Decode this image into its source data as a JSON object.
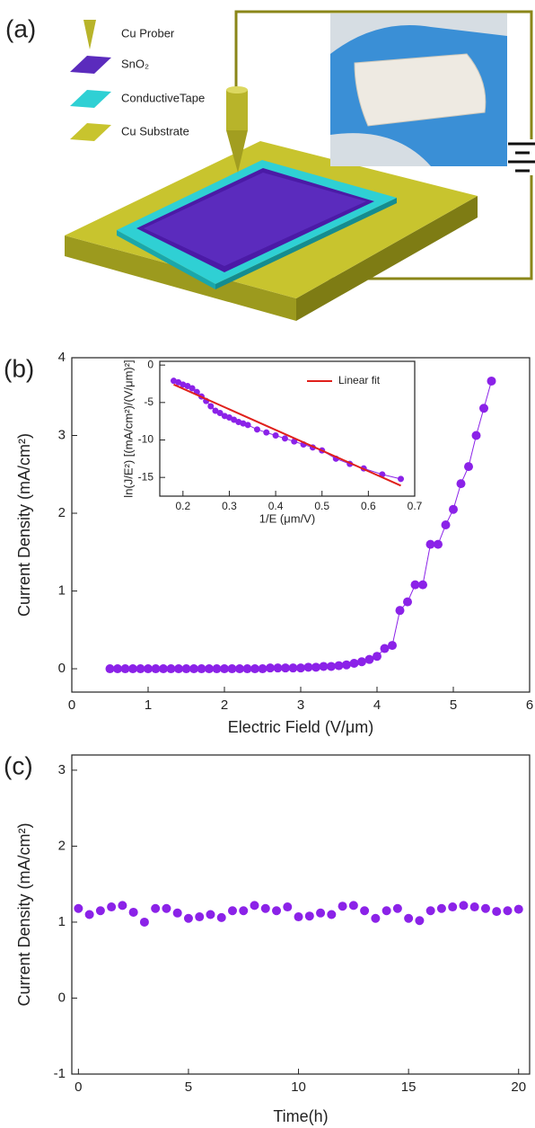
{
  "panel_a": {
    "label": "(a)",
    "legend": [
      "Cu Prober",
      "SnO₂",
      "ConductiveTape",
      "Cu Substrate"
    ]
  },
  "chart_data": [
    {
      "type": "line",
      "panel_label": "(b)",
      "x_label": "Electric Field (V/μm)",
      "y_label": "Current Density (mA/cm²)",
      "xlim": [
        0,
        6
      ],
      "xticks": [
        0,
        1,
        2,
        3,
        4,
        5,
        6
      ],
      "ylim": [
        -0.3,
        4
      ],
      "yticks": [
        0,
        1,
        2,
        3,
        4
      ],
      "series": [
        {
          "color": "#8b22e8",
          "mode": "markers+line",
          "x": [
            0.5,
            0.6,
            0.7,
            0.8,
            0.9,
            1.0,
            1.1,
            1.2,
            1.3,
            1.4,
            1.5,
            1.6,
            1.7,
            1.8,
            1.9,
            2.0,
            2.1,
            2.2,
            2.3,
            2.4,
            2.5,
            2.6,
            2.7,
            2.8,
            2.9,
            3.0,
            3.1,
            3.2,
            3.3,
            3.4,
            3.5,
            3.6,
            3.7,
            3.8,
            3.9,
            4.0,
            4.1,
            4.2,
            4.3,
            4.4,
            4.5,
            4.6,
            4.7,
            4.8,
            4.9,
            5.0,
            5.1,
            5.2,
            5.3,
            5.4,
            5.5
          ],
          "values": [
            0,
            0,
            0,
            0,
            0,
            0,
            0,
            0,
            0,
            0,
            0,
            0,
            0,
            0,
            0,
            0,
            0,
            0,
            0,
            0,
            0,
            0.01,
            0.01,
            0.01,
            0.01,
            0.01,
            0.02,
            0.02,
            0.03,
            0.03,
            0.04,
            0.05,
            0.07,
            0.09,
            0.12,
            0.16,
            0.26,
            0.3,
            0.75,
            0.86,
            1.08,
            1.08,
            1.6,
            1.6,
            1.85,
            2.05,
            2.38,
            2.6,
            3.0,
            3.35,
            3.7
          ]
        }
      ]
    },
    {
      "type": "scatter",
      "x_label": "1/E (μm/V)",
      "y_label": "ln(J/E²) [(mA/cm²)/(V/μm)²]",
      "xlim": [
        0.15,
        0.7
      ],
      "xticks": [
        0.2,
        0.3,
        0.4,
        0.5,
        0.6,
        0.7
      ],
      "ylim": [
        -17.5,
        0.5
      ],
      "yticks": [
        0,
        -5,
        -10,
        -15
      ],
      "legend": "upper right",
      "series": [
        {
          "color": "#8b22e8",
          "mode": "markers+line",
          "x": [
            0.18,
            0.19,
            0.2,
            0.21,
            0.22,
            0.23,
            0.24,
            0.25,
            0.26,
            0.27,
            0.28,
            0.29,
            0.3,
            0.31,
            0.32,
            0.33,
            0.34,
            0.36,
            0.38,
            0.4,
            0.42,
            0.44,
            0.46,
            0.48,
            0.5,
            0.53,
            0.56,
            0.59,
            0.63,
            0.67
          ],
          "values": [
            -2.1,
            -2.3,
            -2.6,
            -2.8,
            -3.1,
            -3.6,
            -4.2,
            -4.8,
            -5.5,
            -6.1,
            -6.4,
            -6.8,
            -7.0,
            -7.3,
            -7.6,
            -7.8,
            -8.0,
            -8.6,
            -9.0,
            -9.4,
            -9.8,
            -10.2,
            -10.6,
            -11.0,
            -11.4,
            -12.5,
            -13.2,
            -13.8,
            -14.6,
            -15.2
          ]
        },
        {
          "name": "Linear fit",
          "color": "#e0201b",
          "mode": "line",
          "x": [
            0.18,
            0.67
          ],
          "values": [
            -2.6,
            -16.1
          ]
        }
      ]
    },
    {
      "type": "scatter",
      "panel_label": "(c)",
      "x_label": "Time(h)",
      "y_label": "Current Density (mA/cm²)",
      "xlim": [
        -0.3,
        20.5
      ],
      "xticks": [
        0,
        5,
        10,
        15,
        20
      ],
      "ylim": [
        -1,
        3.2
      ],
      "yticks": [
        -1,
        0,
        1,
        2,
        3
      ],
      "series": [
        {
          "color": "#8b22e8",
          "mode": "markers",
          "x": [
            0,
            0.5,
            1,
            1.5,
            2,
            2.5,
            3,
            3.5,
            4,
            4.5,
            5,
            5.5,
            6,
            6.5,
            7,
            7.5,
            8,
            8.5,
            9,
            9.5,
            10,
            10.5,
            11,
            11.5,
            12,
            12.5,
            13,
            13.5,
            14,
            14.5,
            15,
            15.5,
            16,
            16.5,
            17,
            17.5,
            18,
            18.5,
            19,
            19.5,
            20
          ],
          "values": [
            1.18,
            1.1,
            1.15,
            1.2,
            1.22,
            1.13,
            1.0,
            1.18,
            1.18,
            1.12,
            1.05,
            1.07,
            1.1,
            1.06,
            1.15,
            1.15,
            1.22,
            1.18,
            1.15,
            1.2,
            1.07,
            1.08,
            1.12,
            1.1,
            1.21,
            1.22,
            1.15,
            1.05,
            1.15,
            1.18,
            1.05,
            1.02,
            1.15,
            1.18,
            1.2,
            1.22,
            1.2,
            1.18,
            1.14,
            1.15,
            1.17
          ]
        }
      ]
    }
  ]
}
